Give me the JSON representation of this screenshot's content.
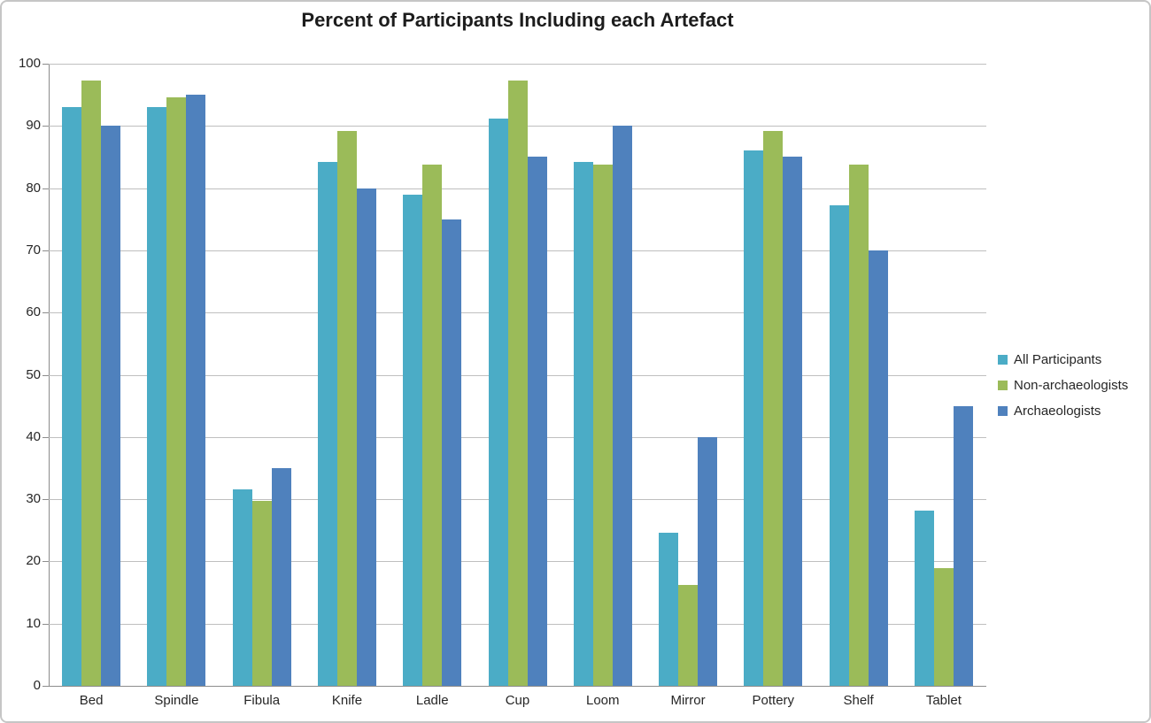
{
  "chart_data": {
    "type": "bar",
    "title": "Percent of Participants Including each Artefact",
    "categories": [
      "Bed",
      "Spindle",
      "Fibula",
      "Knife",
      "Ladle",
      "Cup",
      "Loom",
      "Mirror",
      "Pottery",
      "Shelf",
      "Tablet"
    ],
    "series": [
      {
        "name": "All Participants",
        "color": "#4BACC6",
        "values": [
          93.0,
          93.0,
          31.6,
          84.2,
          78.9,
          91.2,
          84.2,
          24.6,
          86.0,
          77.2,
          28.1
        ]
      },
      {
        "name": "Non-archaeologists",
        "color": "#9BBB59",
        "values": [
          97.3,
          94.6,
          29.7,
          89.2,
          83.8,
          97.3,
          83.8,
          16.2,
          89.2,
          83.8,
          18.9
        ]
      },
      {
        "name": "Archaeologists",
        "color": "#4F81BD",
        "values": [
          90,
          95,
          35,
          80,
          75,
          85,
          90,
          40,
          85,
          70,
          45
        ]
      }
    ],
    "xlabel": "",
    "ylabel": "",
    "ylim": [
      0,
      100
    ],
    "yticks": [
      0,
      10,
      20,
      30,
      40,
      50,
      60,
      70,
      80,
      90,
      100
    ],
    "grid": true,
    "legend_position": "right",
    "colors": {
      "gridline": "#bfbfbf",
      "axis": "#8c8c8c",
      "text": "#262626"
    }
  }
}
